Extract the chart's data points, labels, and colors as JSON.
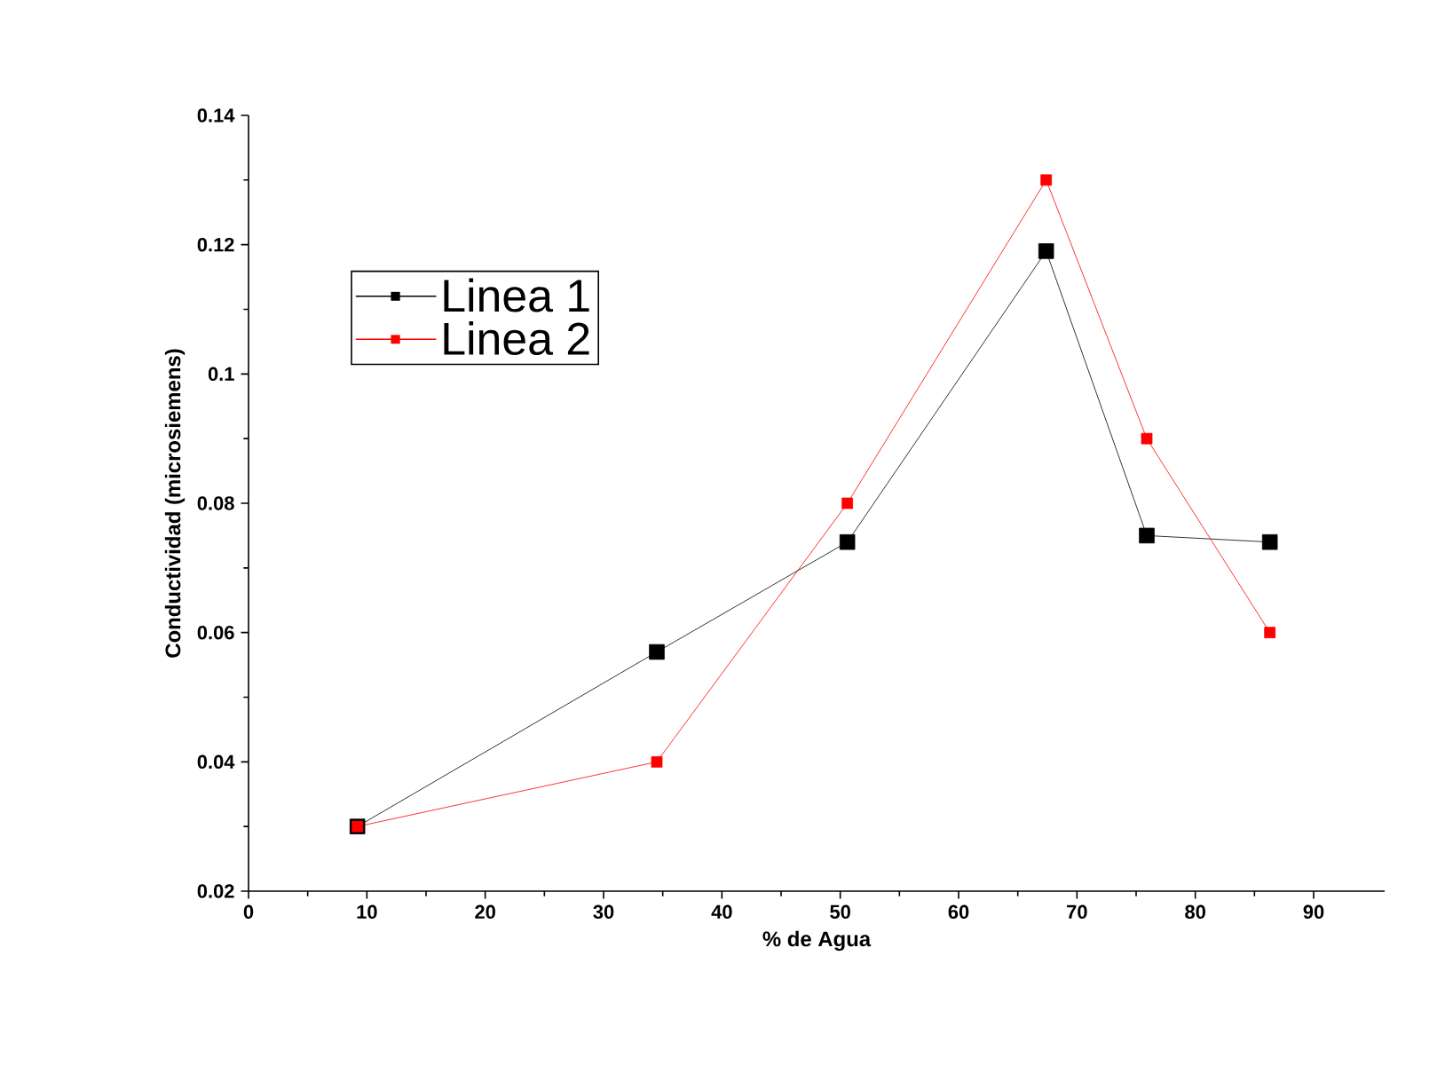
{
  "chart_data": {
    "type": "line",
    "xlabel": "% de Agua",
    "ylabel": "Conductividad  (microsiemens)",
    "xlim": [
      0,
      96
    ],
    "xticks": [
      0,
      10,
      20,
      30,
      40,
      50,
      60,
      70,
      80,
      90
    ],
    "ylim": [
      0.02,
      0.14
    ],
    "yticks": [
      0.02,
      0.04,
      0.06,
      0.08,
      0.1,
      0.12,
      0.14
    ],
    "legend": "top left",
    "marker": "square",
    "line_style": "solid",
    "grid": false,
    "series": [
      {
        "name": "Linea 1",
        "color": "#000000",
        "x": [
          9.2,
          34.5,
          50.6,
          67.4,
          75.9,
          86.3
        ],
        "values": [
          0.03,
          0.057,
          0.074,
          0.119,
          0.075,
          0.074
        ]
      },
      {
        "name": "Linea 2",
        "color": "#ff0000",
        "x": [
          9.2,
          34.5,
          50.6,
          67.4,
          75.9,
          86.3
        ],
        "values": [
          0.03,
          0.04,
          0.08,
          0.13,
          0.09,
          0.06
        ]
      }
    ]
  }
}
